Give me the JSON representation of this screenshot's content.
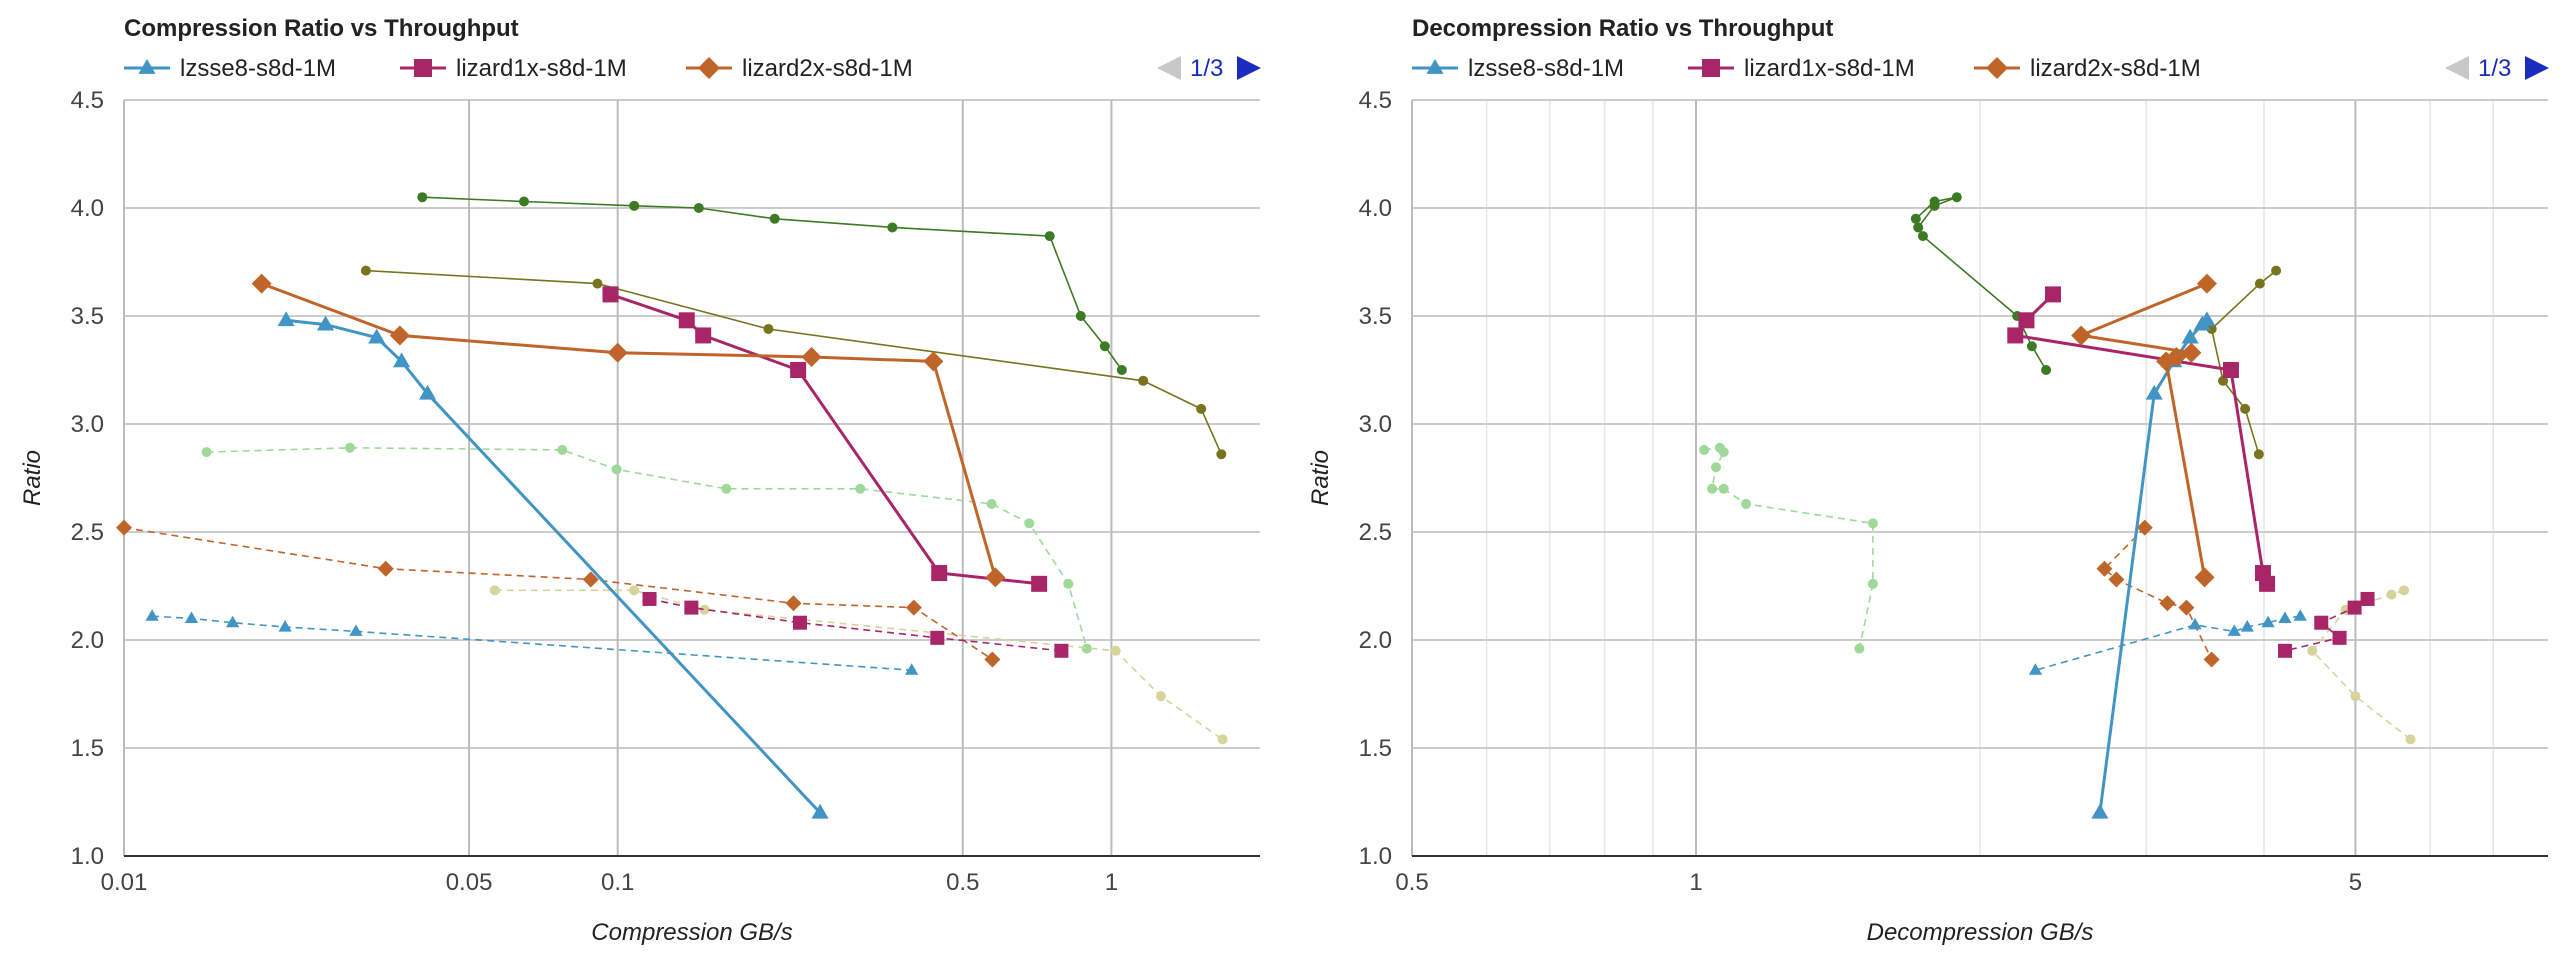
{
  "legend": [
    {
      "name": "lzsse8-s8d-1M",
      "color": "#4195c4",
      "marker": "triangle"
    },
    {
      "name": "lizard1x-s8d-1M",
      "color": "#a82668",
      "marker": "square"
    },
    {
      "name": "lizard2x-s8d-1M",
      "color": "#c0652a",
      "marker": "diamond"
    }
  ],
  "pager": {
    "label": "1/3",
    "prev_icon": "triangle-left-icon",
    "next_icon": "triangle-right-icon"
  },
  "chart_data": [
    {
      "type": "scatter",
      "title": "Compression Ratio vs Throughput",
      "xlabel": "Compression GB/s",
      "ylabel": "Ratio",
      "xscale": "log",
      "xlim": [
        0.01,
        2
      ],
      "ylim": [
        1.0,
        4.5
      ],
      "xticks": [
        "0.01",
        "0.05",
        "0.1",
        "0.5",
        "1"
      ],
      "yticks": [
        "1.0",
        "1.5",
        "2.0",
        "2.5",
        "3.0",
        "3.5",
        "4.0",
        "4.5"
      ],
      "grid": "major",
      "legend_position": "top",
      "series": [
        {
          "name": "lzsse8-s8d-1M",
          "color": "#4195c4",
          "marker": "triangle",
          "style": "solid",
          "width": 3,
          "size": 9,
          "points": [
            [
              0.0213,
              3.48
            ],
            [
              0.0256,
              3.46
            ],
            [
              0.0325,
              3.4
            ],
            [
              0.0365,
              3.29
            ],
            [
              0.0412,
              3.14
            ],
            [
              0.257,
              1.2
            ]
          ]
        },
        {
          "name": "lizard1x-s8d-1M",
          "color": "#a82668",
          "marker": "square",
          "style": "solid",
          "width": 3,
          "size": 8,
          "points": [
            [
              0.0967,
              3.6
            ],
            [
              0.138,
              3.48
            ],
            [
              0.149,
              3.41
            ],
            [
              0.232,
              3.25
            ],
            [
              0.448,
              2.31
            ],
            [
              0.714,
              2.26
            ]
          ]
        },
        {
          "name": "lizard2x-s8d-1M",
          "color": "#c0652a",
          "marker": "diamond",
          "style": "solid",
          "width": 3,
          "size": 10,
          "points": [
            [
              0.019,
              3.65
            ],
            [
              0.0362,
              3.41
            ],
            [
              0.1,
              3.33
            ],
            [
              0.247,
              3.31
            ],
            [
              0.436,
              3.29
            ],
            [
              0.582,
              2.29
            ]
          ]
        },
        {
          "color": "#3c7a24",
          "marker": "circle",
          "style": "solid",
          "width": 1.6,
          "size": 5,
          "points": [
            [
              0.0402,
              4.05
            ],
            [
              0.0646,
              4.03
            ],
            [
              0.108,
              4.01
            ],
            [
              0.146,
              4.0
            ],
            [
              0.208,
              3.95
            ],
            [
              0.36,
              3.91
            ],
            [
              0.75,
              3.87
            ],
            [
              0.867,
              3.5
            ],
            [
              0.97,
              3.36
            ],
            [
              1.05,
              3.25
            ]
          ]
        },
        {
          "color": "#77731e",
          "marker": "circle",
          "style": "solid",
          "width": 1.6,
          "size": 5,
          "points": [
            [
              0.0309,
              3.71
            ],
            [
              0.091,
              3.65
            ],
            [
              0.202,
              3.44
            ],
            [
              1.16,
              3.2
            ],
            [
              1.52,
              3.07
            ],
            [
              1.67,
              2.86
            ]
          ]
        },
        {
          "color": "#9fd99a",
          "marker": "circle",
          "style": "dashed",
          "width": 1.6,
          "size": 5,
          "points": [
            [
              0.0147,
              2.87
            ],
            [
              0.0287,
              2.89
            ],
            [
              0.0772,
              2.88
            ],
            [
              0.0995,
              2.79
            ],
            [
              0.166,
              2.7
            ],
            [
              0.31,
              2.7
            ],
            [
              0.572,
              2.63
            ],
            [
              0.682,
              2.54
            ],
            [
              0.818,
              2.26
            ],
            [
              0.892,
              1.96
            ]
          ]
        },
        {
          "color": "#d6d49a",
          "marker": "circle",
          "style": "dashed",
          "width": 1.6,
          "size": 5,
          "points": [
            [
              0.0564,
              2.23
            ],
            [
              0.108,
              2.23
            ],
            [
              0.15,
              2.14
            ],
            [
              1.02,
              1.95
            ],
            [
              1.26,
              1.74
            ],
            [
              1.68,
              1.54
            ]
          ]
        },
        {
          "color": "#c0652a",
          "marker": "diamond",
          "style": "dashed",
          "width": 1.6,
          "size": 8,
          "points": [
            [
              0.01,
              2.52
            ],
            [
              0.0339,
              2.33
            ],
            [
              0.0882,
              2.28
            ],
            [
              0.227,
              2.17
            ],
            [
              0.398,
              2.15
            ],
            [
              0.574,
              1.91
            ]
          ]
        },
        {
          "color": "#a82668",
          "marker": "square",
          "style": "dashed",
          "width": 1.6,
          "size": 7,
          "points": [
            [
              0.116,
              2.19
            ],
            [
              0.141,
              2.15
            ],
            [
              0.234,
              2.08
            ],
            [
              0.444,
              2.01
            ],
            [
              0.792,
              1.95
            ]
          ]
        },
        {
          "color": "#4195c4",
          "marker": "triangle",
          "style": "dashed",
          "width": 1.6,
          "size": 7,
          "points": [
            [
              0.0114,
              2.11
            ],
            [
              0.0137,
              2.1
            ],
            [
              0.0166,
              2.08
            ],
            [
              0.0212,
              2.06
            ],
            [
              0.0295,
              2.04
            ],
            [
              0.394,
              1.86
            ]
          ]
        }
      ]
    },
    {
      "type": "scatter",
      "title": "Decompression Ratio vs Throughput",
      "xlabel": "Decompression GB/s",
      "ylabel": "Ratio",
      "xscale": "log",
      "xlim": [
        0.5,
        8
      ],
      "ylim": [
        1.0,
        4.5
      ],
      "xticks": [
        "0.5",
        "1",
        "5"
      ],
      "yticks": [
        "1.0",
        "1.5",
        "2.0",
        "2.5",
        "3.0",
        "3.5",
        "4.0",
        "4.5"
      ],
      "grid": "major+minor",
      "legend_position": "top",
      "series": [
        {
          "name": "lzsse8-s8d-1M",
          "color": "#4195c4",
          "marker": "triangle",
          "style": "solid",
          "width": 3,
          "size": 9,
          "points": [
            [
              2.68,
              1.2
            ],
            [
              3.06,
              3.14
            ],
            [
              3.21,
              3.29
            ],
            [
              3.34,
              3.4
            ],
            [
              3.44,
              3.46
            ],
            [
              3.48,
              3.48
            ]
          ]
        },
        {
          "name": "lizard1x-s8d-1M",
          "color": "#a82668",
          "marker": "square",
          "style": "solid",
          "width": 3,
          "size": 8,
          "points": [
            [
              2.39,
              3.6
            ],
            [
              2.24,
              3.48
            ],
            [
              2.18,
              3.41
            ],
            [
              3.69,
              3.25
            ],
            [
              3.99,
              2.31
            ],
            [
              4.03,
              2.26
            ]
          ]
        },
        {
          "name": "lizard2x-s8d-1M",
          "color": "#c0652a",
          "marker": "diamond",
          "style": "solid",
          "width": 3,
          "size": 10,
          "points": [
            [
              3.48,
              3.65
            ],
            [
              2.56,
              3.41
            ],
            [
              3.35,
              3.33
            ],
            [
              3.23,
              3.31
            ],
            [
              3.15,
              3.29
            ],
            [
              3.46,
              2.29
            ]
          ]
        },
        {
          "color": "#3c7a24",
          "marker": "circle",
          "style": "solid",
          "width": 1.6,
          "size": 5,
          "points": [
            [
              1.71,
              3.95
            ],
            [
              1.79,
              4.03
            ],
            [
              1.89,
              4.05
            ],
            [
              1.79,
              4.01
            ],
            [
              1.72,
              3.91
            ],
            [
              1.74,
              3.87
            ],
            [
              2.19,
              3.5
            ],
            [
              2.27,
              3.36
            ],
            [
              2.35,
              3.25
            ]
          ]
        },
        {
          "color": "#77731e",
          "marker": "circle",
          "style": "solid",
          "width": 1.6,
          "size": 5,
          "points": [
            [
              4.12,
              3.71
            ],
            [
              3.96,
              3.65
            ],
            [
              3.52,
              3.44
            ],
            [
              3.62,
              3.2
            ],
            [
              3.82,
              3.07
            ],
            [
              3.95,
              2.86
            ]
          ]
        },
        {
          "color": "#9fd99a",
          "marker": "circle",
          "style": "dashed",
          "width": 1.6,
          "size": 5,
          "points": [
            [
              1.02,
              2.88
            ],
            [
              1.06,
              2.89
            ],
            [
              1.07,
              2.87
            ],
            [
              1.05,
              2.8
            ],
            [
              1.04,
              2.7
            ],
            [
              1.07,
              2.7
            ],
            [
              1.13,
              2.63
            ],
            [
              1.54,
              2.54
            ],
            [
              1.54,
              2.26
            ],
            [
              1.49,
              1.96
            ]
          ]
        },
        {
          "color": "#d6d49a",
          "marker": "circle",
          "style": "dashed",
          "width": 1.6,
          "size": 5,
          "points": [
            [
              5.63,
              2.23
            ],
            [
              5.46,
              2.21
            ],
            [
              4.88,
              2.14
            ],
            [
              4.5,
              1.95
            ],
            [
              5.0,
              1.74
            ],
            [
              5.72,
              1.54
            ]
          ]
        },
        {
          "color": "#c0652a",
          "marker": "diamond",
          "style": "dashed",
          "width": 1.6,
          "size": 8,
          "points": [
            [
              2.99,
              2.52
            ],
            [
              2.71,
              2.33
            ],
            [
              2.79,
              2.28
            ],
            [
              3.16,
              2.17
            ],
            [
              3.31,
              2.15
            ],
            [
              3.52,
              1.91
            ]
          ]
        },
        {
          "color": "#a82668",
          "marker": "square",
          "style": "dashed",
          "width": 1.6,
          "size": 7,
          "points": [
            [
              5.15,
              2.19
            ],
            [
              4.99,
              2.15
            ],
            [
              4.6,
              2.08
            ],
            [
              4.81,
              2.01
            ],
            [
              4.21,
              1.95
            ]
          ]
        },
        {
          "color": "#4195c4",
          "marker": "triangle",
          "style": "dashed",
          "width": 1.6,
          "size": 7,
          "points": [
            [
              4.37,
              2.11
            ],
            [
              4.21,
              2.1
            ],
            [
              4.04,
              2.08
            ],
            [
              3.84,
              2.06
            ],
            [
              3.72,
              2.04
            ],
            [
              3.38,
              2.07
            ],
            [
              2.29,
              1.86
            ]
          ]
        }
      ]
    }
  ]
}
